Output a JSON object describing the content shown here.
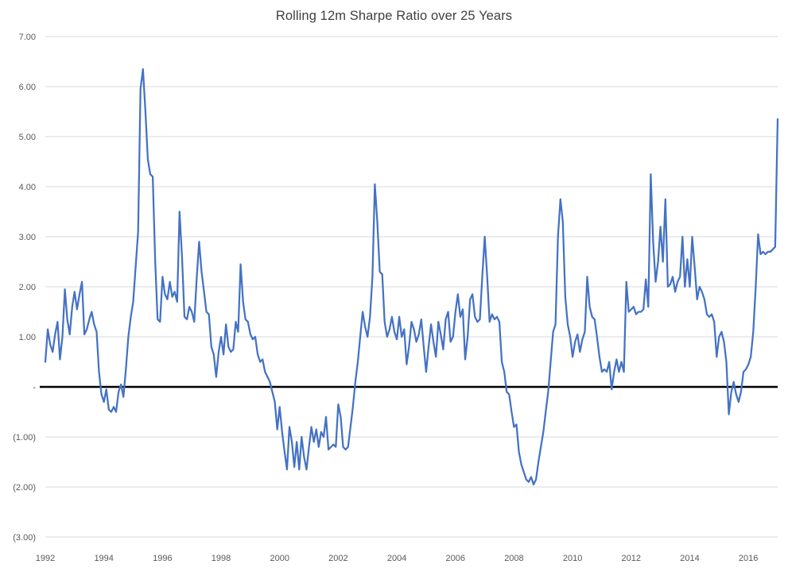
{
  "page": {
    "background": "#FFFFFF"
  },
  "chart_data": {
    "type": "line",
    "title": "Rolling 12m Sharpe Ratio over 25 Years",
    "xlabel": "",
    "ylabel": "",
    "xlim": [
      1992,
      2017
    ],
    "ylim": [
      -3,
      7
    ],
    "grid": "horizontal",
    "legend": "none",
    "gridline_color": "#D9D9D9",
    "zero_line_color": "#000000",
    "axis_label_color": "#595959",
    "title_color": "#404040",
    "x_ticks": [
      1992,
      1994,
      1996,
      1998,
      2000,
      2002,
      2004,
      2006,
      2008,
      2010,
      2012,
      2014,
      2016
    ],
    "y_ticks": [
      {
        "v": 7,
        "label": "7.00"
      },
      {
        "v": 6,
        "label": "6.00"
      },
      {
        "v": 5,
        "label": "5.00"
      },
      {
        "v": 4,
        "label": "4.00"
      },
      {
        "v": 3,
        "label": "3.00"
      },
      {
        "v": 2,
        "label": "2.00"
      },
      {
        "v": 1,
        "label": "1.00"
      },
      {
        "v": 0,
        "label": "-"
      },
      {
        "v": -1,
        "label": "(1.00)"
      },
      {
        "v": -2,
        "label": "(2.00)"
      },
      {
        "v": -3,
        "label": "(3.00)"
      }
    ],
    "series": [
      {
        "name": "Rolling 12m Sharpe Ratio",
        "color": "#4472C4",
        "start_year": 1992,
        "interval": "monthly",
        "values": [
          0.5,
          1.15,
          0.85,
          0.7,
          1.05,
          1.3,
          0.55,
          1.0,
          1.95,
          1.35,
          1.05,
          1.6,
          1.9,
          1.55,
          1.85,
          2.1,
          1.05,
          1.15,
          1.35,
          1.5,
          1.25,
          1.1,
          0.3,
          -0.15,
          -0.3,
          -0.05,
          -0.45,
          -0.5,
          -0.4,
          -0.5,
          -0.1,
          0.05,
          -0.2,
          0.35,
          1.0,
          1.4,
          1.7,
          2.4,
          3.1,
          5.95,
          6.35,
          5.5,
          4.55,
          4.25,
          4.2,
          2.5,
          1.35,
          1.3,
          2.2,
          1.85,
          1.75,
          2.1,
          1.8,
          1.9,
          1.7,
          3.5,
          2.6,
          1.4,
          1.35,
          1.6,
          1.5,
          1.3,
          2.15,
          2.9,
          2.3,
          1.9,
          1.5,
          1.45,
          0.8,
          0.65,
          0.2,
          0.7,
          1.0,
          0.65,
          1.25,
          0.8,
          0.7,
          0.75,
          1.3,
          1.1,
          2.45,
          1.7,
          1.35,
          1.3,
          1.05,
          0.95,
          1.0,
          0.65,
          0.5,
          0.55,
          0.3,
          0.2,
          0.1,
          -0.1,
          -0.3,
          -0.85,
          -0.4,
          -0.9,
          -1.3,
          -1.65,
          -0.8,
          -1.1,
          -1.6,
          -1.1,
          -1.65,
          -1.0,
          -1.4,
          -1.65,
          -1.2,
          -0.8,
          -1.1,
          -0.85,
          -1.2,
          -0.9,
          -1.0,
          -0.6,
          -1.25,
          -1.2,
          -1.15,
          -1.2,
          -0.35,
          -0.6,
          -1.2,
          -1.25,
          -1.2,
          -0.8,
          -0.4,
          0.1,
          0.5,
          1.0,
          1.5,
          1.2,
          1.0,
          1.4,
          2.2,
          4.05,
          3.3,
          2.3,
          2.25,
          1.3,
          1.0,
          1.15,
          1.4,
          1.1,
          0.95,
          1.4,
          1.0,
          1.15,
          0.45,
          0.8,
          1.3,
          1.15,
          0.9,
          1.05,
          1.35,
          0.8,
          0.3,
          0.8,
          1.25,
          0.9,
          0.6,
          1.3,
          1.05,
          0.75,
          1.35,
          1.5,
          0.9,
          1.0,
          1.5,
          1.85,
          1.4,
          1.55,
          0.55,
          1.0,
          1.75,
          1.85,
          1.4,
          1.3,
          1.35,
          2.2,
          3.0,
          2.2,
          1.3,
          1.45,
          1.35,
          1.4,
          1.3,
          0.5,
          0.3,
          -0.1,
          -0.15,
          -0.5,
          -0.8,
          -0.75,
          -1.3,
          -1.55,
          -1.7,
          -1.85,
          -1.9,
          -1.8,
          -1.95,
          -1.85,
          -1.5,
          -1.2,
          -0.9,
          -0.5,
          -0.1,
          0.5,
          1.1,
          1.25,
          3.0,
          3.75,
          3.3,
          1.8,
          1.25,
          1.0,
          0.6,
          0.9,
          1.05,
          0.7,
          0.95,
          1.1,
          2.2,
          1.6,
          1.4,
          1.35,
          1.0,
          0.6,
          0.3,
          0.35,
          0.3,
          0.5,
          -0.05,
          0.3,
          0.55,
          0.3,
          0.5,
          0.3,
          2.1,
          1.5,
          1.55,
          1.6,
          1.45,
          1.5,
          1.5,
          1.55,
          2.15,
          1.6,
          4.25,
          2.9,
          2.1,
          2.5,
          3.2,
          2.5,
          3.75,
          2.0,
          2.05,
          2.2,
          1.9,
          2.1,
          2.2,
          3.0,
          2.0,
          2.55,
          2.0,
          3.0,
          2.4,
          1.75,
          2.0,
          1.9,
          1.75,
          1.45,
          1.4,
          1.45,
          1.3,
          0.6,
          1.0,
          1.1,
          0.9,
          0.5,
          -0.55,
          -0.1,
          0.1,
          -0.15,
          -0.3,
          -0.1,
          0.3,
          0.35,
          0.45,
          0.6,
          1.1,
          2.0,
          3.05,
          2.65,
          2.7,
          2.65,
          2.7,
          2.7,
          2.75,
          2.8,
          5.35
        ]
      }
    ]
  }
}
